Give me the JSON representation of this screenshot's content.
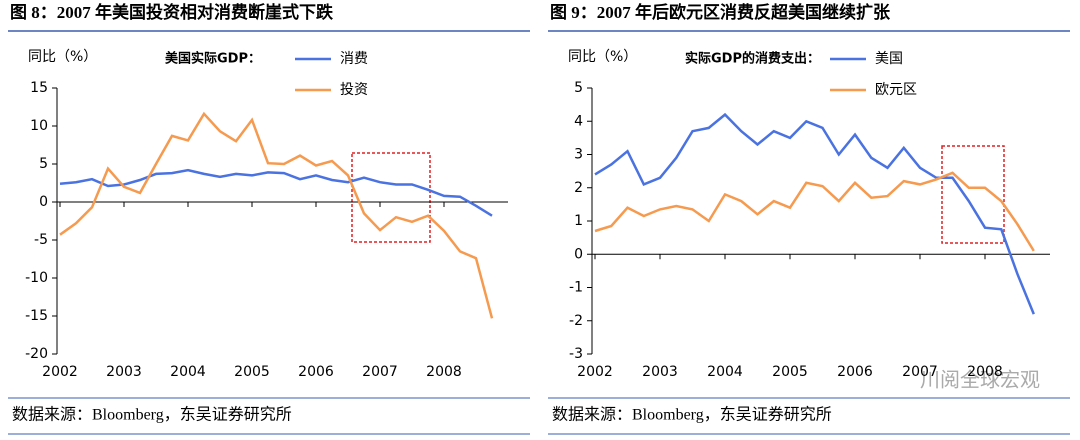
{
  "watermark": "川阅全球宏观",
  "chart_data": [
    {
      "type": "line",
      "title": "图 8：2007 年美国投资相对消费断崖式下跌",
      "ylabel": "同比（%）",
      "legend_title": "美国实际GDP：",
      "source": "数据来源：Bloomberg，东吴证券研究所",
      "x": [
        2002,
        2002.25,
        2002.5,
        2002.75,
        2003,
        2003.25,
        2003.5,
        2003.75,
        2004,
        2004.25,
        2004.5,
        2004.75,
        2005,
        2005.25,
        2005.5,
        2005.75,
        2006,
        2006.25,
        2006.5,
        2006.75,
        2007,
        2007.25,
        2007.5,
        2007.75,
        2008,
        2008.25,
        2008.5,
        2008.75
      ],
      "xlim": [
        2002,
        2009
      ],
      "xticks": [
        2002,
        2003,
        2004,
        2005,
        2006,
        2007,
        2008
      ],
      "ylim": [
        -20,
        15
      ],
      "yticks": [
        15,
        10,
        5,
        0,
        -5,
        -10,
        -15,
        -20
      ],
      "series": [
        {
          "name": "消费",
          "color": "#4a72e0",
          "values": [
            2.4,
            2.6,
            3.0,
            2.1,
            2.3,
            2.9,
            3.7,
            3.8,
            4.2,
            3.7,
            3.3,
            3.7,
            3.5,
            3.9,
            3.8,
            3.0,
            3.5,
            2.9,
            2.6,
            3.2,
            2.6,
            2.3,
            2.3,
            1.6,
            0.8,
            0.7,
            -0.5,
            -1.8
          ]
        },
        {
          "name": "投资",
          "color": "#f59a4f",
          "values": [
            -4.3,
            -2.8,
            -0.7,
            4.4,
            2.0,
            1.2,
            5.0,
            8.7,
            8.1,
            11.6,
            9.3,
            8.0,
            10.8,
            5.1,
            5.0,
            6.1,
            4.8,
            5.4,
            3.5,
            -1.5,
            -3.7,
            -2.0,
            -2.6,
            -1.8,
            -3.8,
            -6.5,
            -7.4,
            -15.3
          ]
        }
      ]
    },
    {
      "type": "line",
      "title": "图 9：2007 年后欧元区消费反超美国继续扩张",
      "ylabel": "同比（%）",
      "legend_title": "实际GDP的消费支出：",
      "source": "数据来源：Bloomberg，东吴证券研究所",
      "x": [
        2002,
        2002.25,
        2002.5,
        2002.75,
        2003,
        2003.25,
        2003.5,
        2003.75,
        2004,
        2004.25,
        2004.5,
        2004.75,
        2005,
        2005.25,
        2005.5,
        2005.75,
        2006,
        2006.25,
        2006.5,
        2006.75,
        2007,
        2007.25,
        2007.5,
        2007.75,
        2008,
        2008.25,
        2008.5,
        2008.75
      ],
      "xlim": [
        2002,
        2009
      ],
      "xticks": [
        2002,
        2003,
        2004,
        2005,
        2006,
        2007,
        2008
      ],
      "ylim": [
        -3,
        5
      ],
      "yticks": [
        5,
        4,
        3,
        2,
        1,
        0,
        -1,
        -2,
        -3
      ],
      "series": [
        {
          "name": "美国",
          "color": "#4a72e0",
          "values": [
            2.4,
            2.7,
            3.1,
            2.1,
            2.3,
            2.9,
            3.7,
            3.8,
            4.2,
            3.7,
            3.3,
            3.7,
            3.5,
            4.0,
            3.8,
            3.0,
            3.6,
            2.9,
            2.6,
            3.2,
            2.6,
            2.3,
            2.3,
            1.6,
            0.8,
            0.75,
            -0.6,
            -1.8
          ]
        },
        {
          "name": "欧元区",
          "color": "#f59a4f",
          "values": [
            0.7,
            0.85,
            1.4,
            1.15,
            1.35,
            1.45,
            1.35,
            1.0,
            1.8,
            1.6,
            1.2,
            1.6,
            1.4,
            2.15,
            2.05,
            1.6,
            2.15,
            1.7,
            1.75,
            2.2,
            2.1,
            2.25,
            2.45,
            2.0,
            2.0,
            1.6,
            0.9,
            0.1
          ]
        }
      ]
    }
  ]
}
